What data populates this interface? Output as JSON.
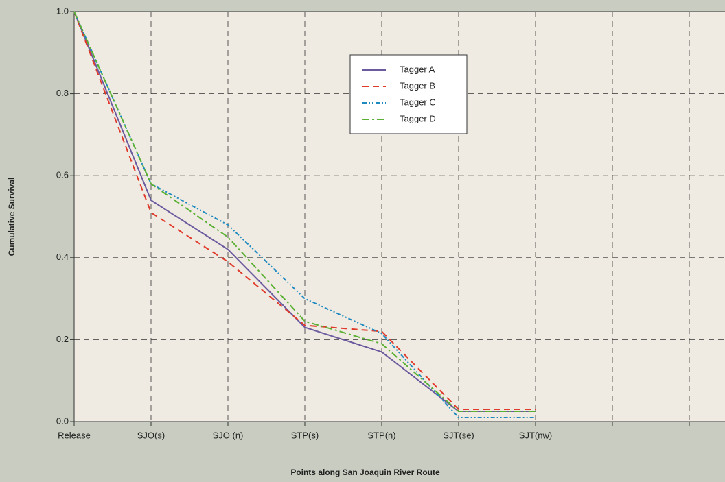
{
  "chart_data": {
    "type": "line",
    "x_label": "Points along San Joaquin River Route",
    "y_label": "Cumulative Survival",
    "categories": [
      "Release",
      "SJO(s)",
      "SJO (n)",
      "STP(s)",
      "STP(n)",
      "SJT(se)",
      "SJT(nw)",
      null,
      null
    ],
    "series": [
      {
        "name": "Tagger A",
        "color": "#6b5a9e",
        "style": "solid",
        "values": [
          1.0,
          0.54,
          0.42,
          0.23,
          0.17,
          0.025,
          0.025,
          null,
          null
        ]
      },
      {
        "name": "Tagger B",
        "color": "#e03a2b",
        "style": "dashed",
        "values": [
          1.0,
          0.51,
          0.39,
          0.235,
          0.22,
          0.03,
          0.03,
          null,
          null
        ]
      },
      {
        "name": "Tagger C",
        "color": "#1f8ac0",
        "style": "dash-dot-dot",
        "values": [
          1.0,
          0.58,
          0.48,
          0.3,
          0.215,
          0.01,
          0.01,
          null,
          null
        ]
      },
      {
        "name": "Tagger D",
        "color": "#5ab033",
        "style": "dash-dot",
        "values": [
          1.0,
          0.58,
          0.45,
          0.245,
          0.19,
          0.025,
          0.025,
          null,
          null
        ]
      }
    ],
    "ylim": [
      0,
      1.0
    ],
    "yticks": [
      {
        "value": 0,
        "label": "0.0"
      },
      0.2,
      0.4,
      0.6,
      0.8,
      {
        "value": 1.0,
        "label": "1.0"
      }
    ],
    "grid": true
  }
}
